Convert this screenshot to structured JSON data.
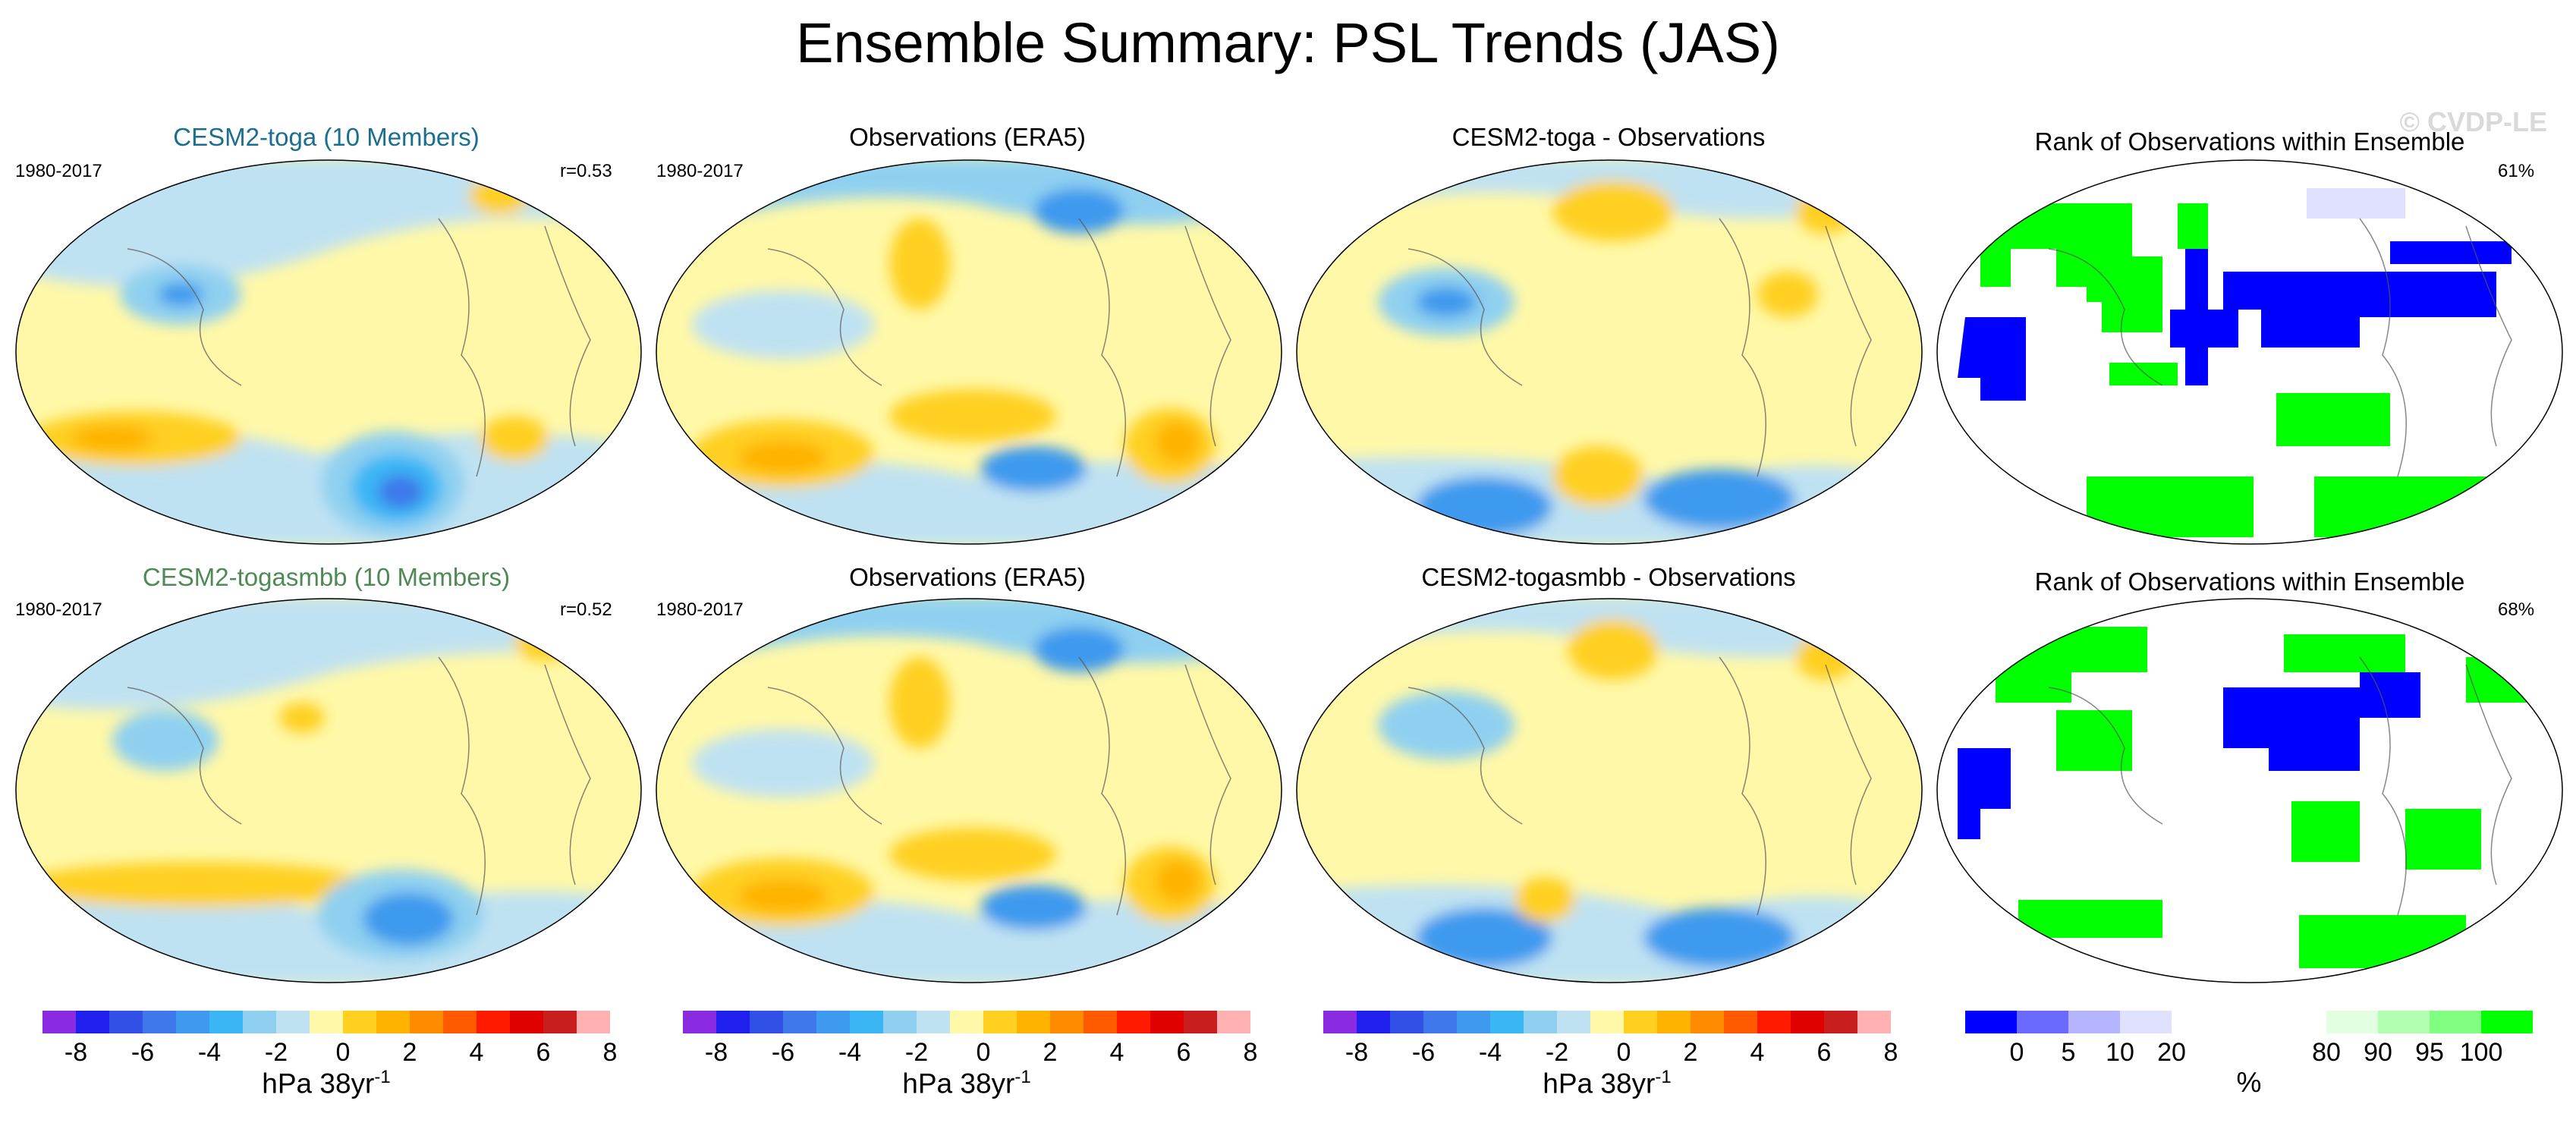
{
  "page": {
    "title": "Ensemble Summary: PSL Trends (JAS)",
    "watermark": "© CVDP-LE"
  },
  "rows": [
    {
      "model_title": "CESM2-toga (10 Members)",
      "model_title_color": "#1a6e8e",
      "period": "1980-2017",
      "correlation": "r=0.53",
      "obs_title": "Observations (ERA5)",
      "obs_period": "1980-2017",
      "diff_title": "CESM2-toga - Observations",
      "rank_title": "Rank of Observations within Ensemble",
      "rank_pct": "61%"
    },
    {
      "model_title": "CESM2-togasmbb (10 Members)",
      "model_title_color": "#4e8a54",
      "period": "1980-2017",
      "correlation": "r=0.52",
      "obs_title": "Observations (ERA5)",
      "obs_period": "1980-2017",
      "diff_title": "CESM2-togasmbb - Observations",
      "rank_title": "Rank of Observations within Ensemble",
      "rank_pct": "68%"
    }
  ],
  "colorbar": {
    "colors": [
      "#8a2be2",
      "#2020ee",
      "#3050e6",
      "#3e78ea",
      "#3e9aee",
      "#3ab6f5",
      "#8fd0f0",
      "#bfe2f2",
      "#fff8a8",
      "#ffd020",
      "#ffb300",
      "#ff8c00",
      "#ff5a00",
      "#ff1a00",
      "#e00000",
      "#c81e1e",
      "#ffb0b0"
    ],
    "tick_labels": [
      "-8",
      "-6",
      "-4",
      "-2",
      "0",
      "2",
      "4",
      "6",
      "8"
    ],
    "unit_label": "hPa 38yr",
    "unit_superscript": "-1"
  },
  "rank_colorbar": {
    "colors": [
      "#0000ff",
      "#6a6aff",
      "#b4b4ff",
      "#e0e0ff",
      "#ffffff",
      "#ffffff",
      "#ffffff",
      "#e2ffe2",
      "#b2ffb2",
      "#80ff80",
      "#00ff00"
    ],
    "tick_labels": [
      "0",
      "5",
      "10",
      "20",
      "80",
      "90",
      "95",
      "100"
    ],
    "unit_label": "%"
  },
  "chart_data": {
    "type": "heatmap",
    "title": "Ensemble Summary: PSL Trends (JAS)",
    "variable": "PSL trend",
    "units": "hPa 38yr-1",
    "levels": [
      -8,
      -7,
      -6,
      -5,
      -4,
      -3,
      -2,
      -1,
      0,
      1,
      2,
      3,
      4,
      5,
      6,
      7,
      8
    ],
    "panels": [
      {
        "row": 1,
        "column": 1,
        "name": "CESM2-toga (10 Members)",
        "period": "1980-2017",
        "pattern_correlation": 0.53
      },
      {
        "row": 1,
        "column": 2,
        "name": "Observations (ERA5)",
        "period": "1980-2017"
      },
      {
        "row": 1,
        "column": 3,
        "name": "CESM2-toga - Observations"
      },
      {
        "row": 1,
        "column": 4,
        "name": "Rank of Observations within Ensemble",
        "percent": 61,
        "rank_levels": [
          0,
          5,
          10,
          20,
          80,
          90,
          95,
          100
        ]
      },
      {
        "row": 2,
        "column": 1,
        "name": "CESM2-togasmbb (10 Members)",
        "period": "1980-2017",
        "pattern_correlation": 0.52
      },
      {
        "row": 2,
        "column": 2,
        "name": "Observations (ERA5)",
        "period": "1980-2017"
      },
      {
        "row": 2,
        "column": 3,
        "name": "CESM2-togasmbb - Observations"
      },
      {
        "row": 2,
        "column": 4,
        "name": "Rank of Observations within Ensemble",
        "percent": 68,
        "rank_levels": [
          0,
          5,
          10,
          20,
          80,
          90,
          95,
          100
        ]
      }
    ]
  }
}
